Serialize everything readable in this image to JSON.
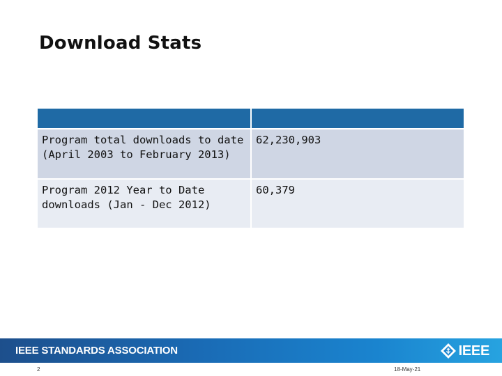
{
  "slide": {
    "title": "Download Stats"
  },
  "table": {
    "header": [
      "",
      ""
    ],
    "rows": [
      {
        "label": "Program total downloads to date (April 2003 to February 2013)",
        "value": "62,230,903"
      },
      {
        "label": "Program 2012 Year to Date downloads (Jan - Dec 2012)",
        "value": "60,379"
      }
    ]
  },
  "footer": {
    "organization": "IEEE STANDARDS ASSOCIATION",
    "logo_text": "IEEE",
    "logo_icon": "ieee-diamond-icon",
    "page_number": "2",
    "date": "18-May-21"
  },
  "colors": {
    "header_blue": "#1f6aa5",
    "row_dark": "#cfd6e4",
    "row_light": "#e8ecf3",
    "footer_gradient_start": "#1d4f8c",
    "footer_gradient_end": "#27a3e0"
  }
}
